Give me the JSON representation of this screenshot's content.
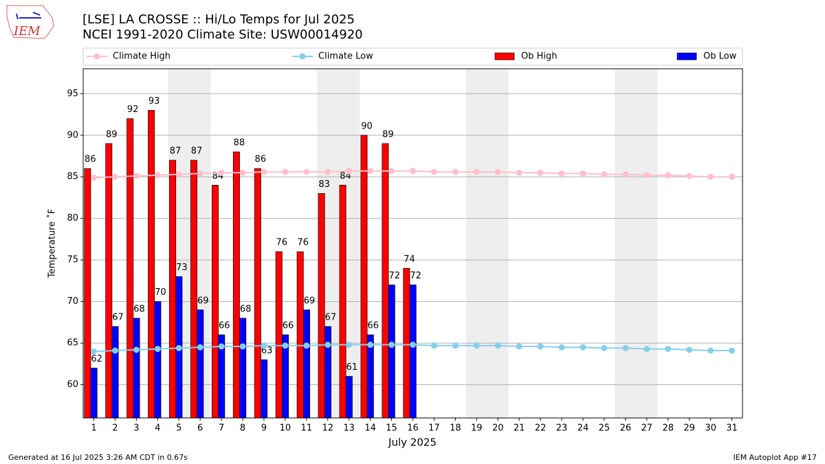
{
  "chart_data": {
    "type": "bar",
    "logo": "IEM",
    "title": "[LSE] LA CROSSE :: Hi/Lo Temps for Jul 2025",
    "subtitle": "NCEI 1991-2020 Climate Site: USW00014920",
    "xlabel": "July 2025",
    "ylabel": "Temperature ˚F",
    "footer_left": "Generated at 16 Jul 2025 3:26 AM CDT in 0.67s",
    "footer_right": "IEM Autoplot App #17",
    "categories": [
      "1",
      "2",
      "3",
      "4",
      "5",
      "6",
      "7",
      "8",
      "9",
      "10",
      "11",
      "12",
      "13",
      "14",
      "15",
      "16",
      "17",
      "18",
      "19",
      "20",
      "21",
      "22",
      "23",
      "24",
      "25",
      "26",
      "27",
      "28",
      "29",
      "30",
      "31"
    ],
    "ylim": [
      56,
      98
    ],
    "yticks": [
      60,
      65,
      70,
      75,
      80,
      85,
      90,
      95
    ],
    "grid": true,
    "legend": "top",
    "series": [
      {
        "name": "Climate High",
        "type": "line",
        "color": "#ffc0cb",
        "values": [
          84.9,
          85.0,
          85.1,
          85.2,
          85.3,
          85.4,
          85.5,
          85.5,
          85.6,
          85.6,
          85.6,
          85.6,
          85.7,
          85.7,
          85.7,
          85.7,
          85.6,
          85.6,
          85.6,
          85.6,
          85.5,
          85.5,
          85.4,
          85.4,
          85.3,
          85.3,
          85.2,
          85.2,
          85.1,
          85.0,
          85.0
        ]
      },
      {
        "name": "Climate Low",
        "type": "line",
        "color": "#87ceeb",
        "values": [
          64.0,
          64.1,
          64.2,
          64.3,
          64.4,
          64.5,
          64.6,
          64.6,
          64.7,
          64.7,
          64.7,
          64.8,
          64.8,
          64.8,
          64.8,
          64.8,
          64.7,
          64.7,
          64.7,
          64.7,
          64.6,
          64.6,
          64.5,
          64.5,
          64.4,
          64.4,
          64.3,
          64.3,
          64.2,
          64.1,
          64.1
        ]
      },
      {
        "name": "Ob High",
        "type": "bar",
        "color": "#ff0000",
        "values": [
          86,
          89,
          92,
          93,
          87,
          87,
          84,
          88,
          86,
          76,
          76,
          83,
          84,
          90,
          89,
          74,
          null,
          null,
          null,
          null,
          null,
          null,
          null,
          null,
          null,
          null,
          null,
          null,
          null,
          null,
          null
        ]
      },
      {
        "name": "Ob Low",
        "type": "bar",
        "color": "#0000ff",
        "values": [
          62,
          67,
          68,
          70,
          73,
          69,
          66,
          68,
          63,
          66,
          69,
          67,
          61,
          66,
          72,
          72,
          null,
          null,
          null,
          null,
          null,
          null,
          null,
          null,
          null,
          null,
          null,
          null,
          null,
          null,
          null
        ]
      }
    ]
  }
}
